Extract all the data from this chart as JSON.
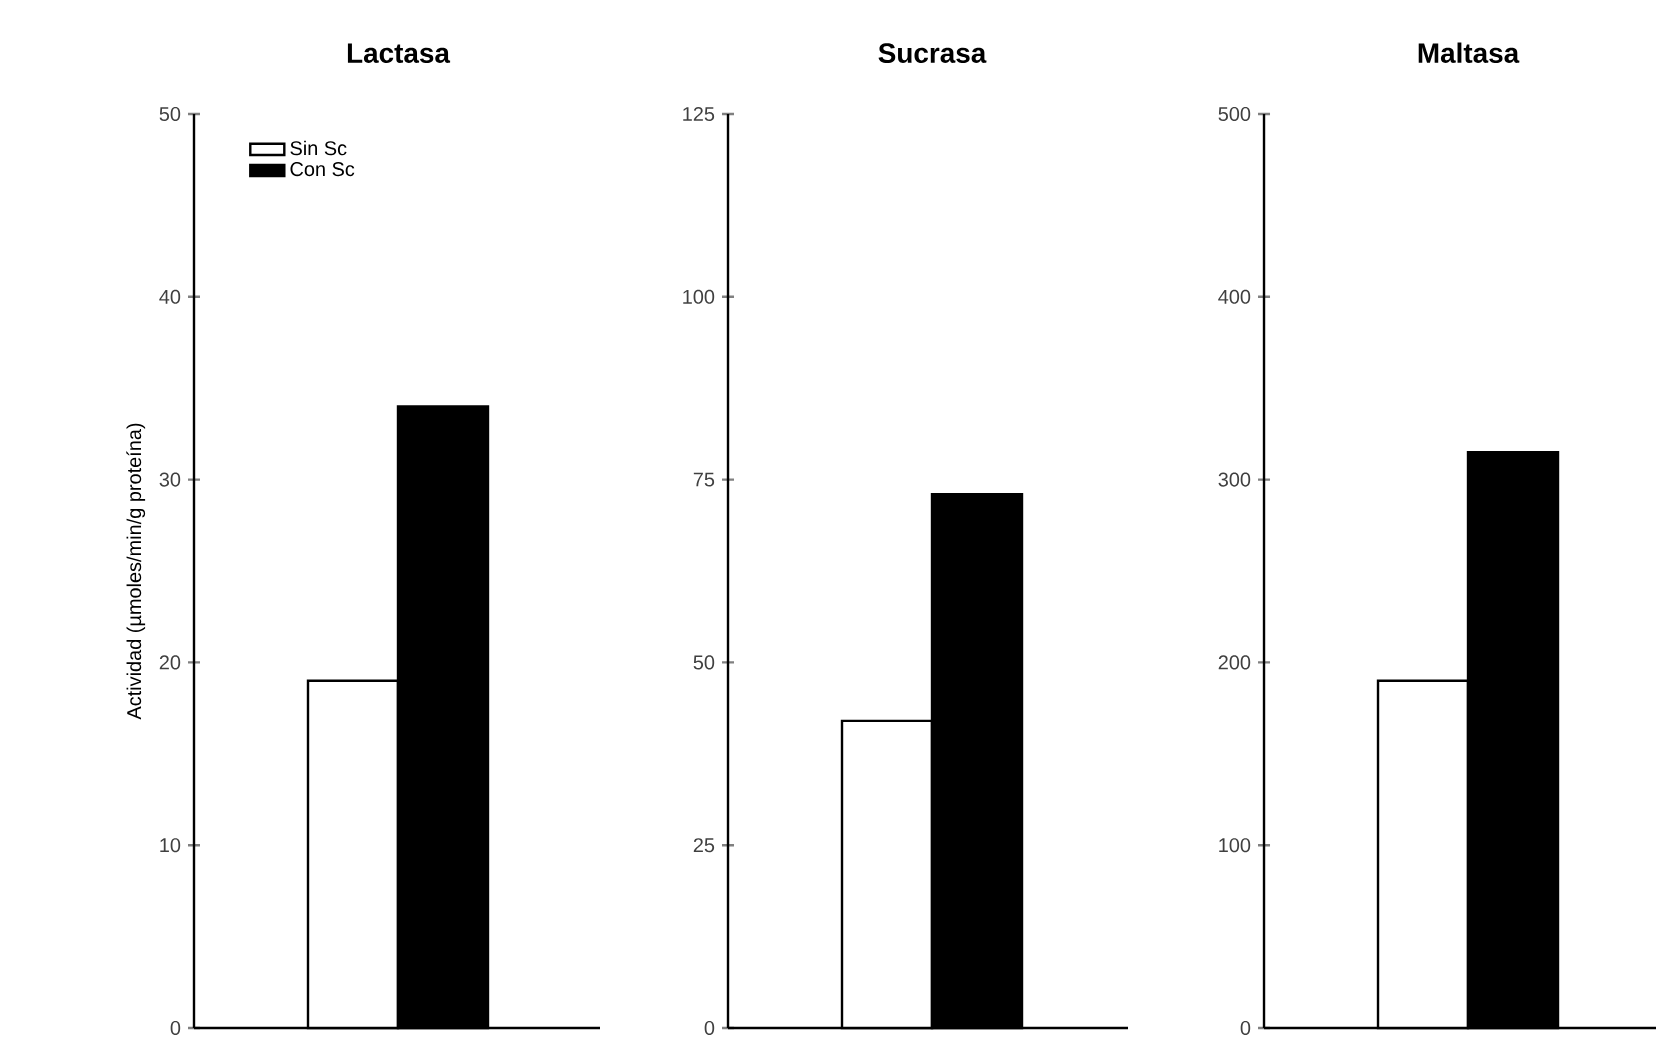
{
  "chart_data": [
    {
      "type": "bar",
      "title": "Lactasa",
      "ylabel": "Actividad (µmoles/min/g proteína)",
      "categories": [
        null
      ],
      "ylim": [
        0,
        50
      ],
      "yticks": [
        0,
        10,
        20,
        30,
        40,
        50
      ],
      "legend": "top left",
      "series": [
        {
          "name": "Sin Sc",
          "color": "#ffffff",
          "values": [
            19
          ]
        },
        {
          "name": "Con Sc",
          "color": "#000000",
          "values": [
            34
          ]
        }
      ]
    },
    {
      "type": "bar",
      "title": "Sucrasa",
      "categories": [
        null
      ],
      "ylim": [
        0,
        125
      ],
      "yticks": [
        0,
        25,
        50,
        75,
        100,
        125
      ],
      "series": [
        {
          "color": "#ffffff",
          "values": [
            42
          ]
        },
        {
          "color": "#000000",
          "values": [
            73
          ]
        }
      ]
    },
    {
      "type": "bar",
      "title": "Maltasa",
      "categories": [
        null
      ],
      "ylim": [
        0,
        500
      ],
      "yticks": [
        0,
        100,
        200,
        300,
        400,
        500
      ],
      "series": [
        {
          "color": "#ffffff",
          "values": [
            190
          ]
        },
        {
          "color": "#000000",
          "values": [
            315
          ]
        }
      ]
    }
  ]
}
